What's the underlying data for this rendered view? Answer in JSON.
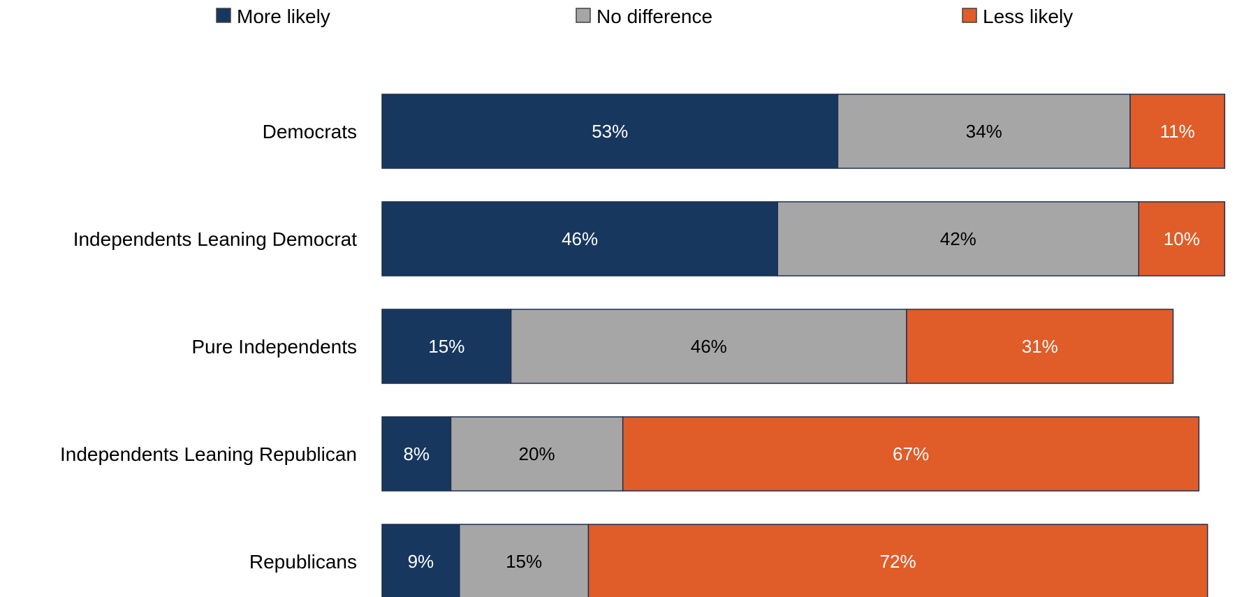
{
  "chart_data": {
    "type": "bar",
    "orientation": "horizontal",
    "stacked": true,
    "title": "",
    "xlabel": "",
    "ylabel": "",
    "xlim": [
      0,
      100
    ],
    "grid": false,
    "legend_position": "top",
    "categories": [
      "Democrats",
      "Independents Leaning Democrat",
      "Pure Independents",
      "Independents Leaning Republican",
      "Republicans"
    ],
    "series": [
      {
        "name": "More likely",
        "color": "#17375e",
        "label_color": "#ffffff",
        "values": [
          53,
          46,
          15,
          8,
          9
        ],
        "labels": [
          "53%",
          "46%",
          "15%",
          "8%",
          "9%"
        ]
      },
      {
        "name": "No difference",
        "color": "#a6a6a6",
        "label_color": "#000000",
        "values": [
          34,
          42,
          46,
          20,
          15
        ],
        "labels": [
          "34%",
          "42%",
          "46%",
          "20%",
          "15%"
        ]
      },
      {
        "name": "Less likely",
        "color": "#e05c28",
        "label_color": "#ffffff",
        "values": [
          11,
          10,
          31,
          67,
          72
        ],
        "labels": [
          "11%",
          "10%",
          "31%",
          "67%",
          "72%"
        ]
      }
    ]
  }
}
